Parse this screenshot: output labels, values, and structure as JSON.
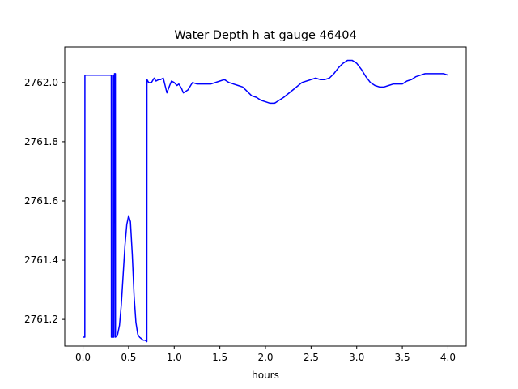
{
  "chart_data": {
    "type": "line",
    "title": "Water Depth h at gauge 46404",
    "xlabel": "hours",
    "ylabel": "",
    "xlim": [
      -0.2,
      4.2
    ],
    "ylim": [
      2761.11,
      2762.12
    ],
    "xticks": [
      {
        "value": 0.0,
        "label": "0.0"
      },
      {
        "value": 0.5,
        "label": "0.5"
      },
      {
        "value": 1.0,
        "label": "1.0"
      },
      {
        "value": 1.5,
        "label": "1.5"
      },
      {
        "value": 2.0,
        "label": "2.0"
      },
      {
        "value": 2.5,
        "label": "2.5"
      },
      {
        "value": 3.0,
        "label": "3.0"
      },
      {
        "value": 3.5,
        "label": "3.5"
      },
      {
        "value": 4.0,
        "label": "4.0"
      }
    ],
    "yticks": [
      {
        "value": 2761.2,
        "label": "2761.2"
      },
      {
        "value": 2761.4,
        "label": "2761.4"
      },
      {
        "value": 2761.6,
        "label": "2761.6"
      },
      {
        "value": 2761.8,
        "label": "2761.8"
      },
      {
        "value": 2762.0,
        "label": "2762.0"
      }
    ],
    "grid": false,
    "series": [
      {
        "color": "#0000ff",
        "x": [
          0.0,
          0.02,
          0.021,
          0.1,
          0.2,
          0.31,
          0.311,
          0.325,
          0.326,
          0.335,
          0.336,
          0.34,
          0.345,
          0.35,
          0.355,
          0.356,
          0.37,
          0.38,
          0.4,
          0.42,
          0.44,
          0.46,
          0.48,
          0.5,
          0.52,
          0.54,
          0.56,
          0.58,
          0.6,
          0.62,
          0.64,
          0.66,
          0.68,
          0.7,
          0.701,
          0.72,
          0.75,
          0.78,
          0.8,
          0.83,
          0.85,
          0.88,
          0.9,
          0.92,
          0.95,
          0.97,
          1.0,
          1.03,
          1.05,
          1.08,
          1.1,
          1.15,
          1.18,
          1.2,
          1.25,
          1.3,
          1.4,
          1.5,
          1.55,
          1.6,
          1.65,
          1.7,
          1.75,
          1.8,
          1.85,
          1.9,
          1.95,
          2.0,
          2.05,
          2.1,
          2.15,
          2.2,
          2.3,
          2.4,
          2.5,
          2.55,
          2.6,
          2.65,
          2.7,
          2.75,
          2.8,
          2.85,
          2.9,
          2.95,
          3.0,
          3.05,
          3.1,
          3.15,
          3.2,
          3.25,
          3.3,
          3.35,
          3.4,
          3.45,
          3.5,
          3.55,
          3.6,
          3.65,
          3.7,
          3.75,
          3.8,
          3.85,
          3.9,
          3.95,
          4.0
        ],
        "y": [
          2761.14,
          2761.14,
          2762.025,
          2762.025,
          2762.025,
          2762.025,
          2761.14,
          2761.14,
          2762.025,
          2762.025,
          2761.14,
          2761.14,
          2762.03,
          2762.03,
          2762.03,
          2761.14,
          2761.145,
          2761.15,
          2761.18,
          2761.25,
          2761.35,
          2761.45,
          2761.52,
          2761.55,
          2761.53,
          2761.42,
          2761.28,
          2761.19,
          2761.15,
          2761.14,
          2761.135,
          2761.13,
          2761.13,
          2761.125,
          2762.01,
          2762.0,
          2762.0,
          2762.015,
          2762.005,
          2762.01,
          2762.01,
          2762.015,
          2761.99,
          2761.965,
          2761.99,
          2762.005,
          2762.0,
          2761.99,
          2761.995,
          2761.98,
          2761.965,
          2761.975,
          2761.99,
          2762.0,
          2761.995,
          2761.995,
          2761.995,
          2762.005,
          2762.01,
          2762.0,
          2761.995,
          2761.99,
          2761.985,
          2761.97,
          2761.955,
          2761.95,
          2761.94,
          2761.935,
          2761.93,
          2761.93,
          2761.94,
          2761.95,
          2761.975,
          2762.0,
          2762.01,
          2762.015,
          2762.01,
          2762.01,
          2762.015,
          2762.03,
          2762.05,
          2762.065,
          2762.075,
          2762.075,
          2762.065,
          2762.045,
          2762.02,
          2762.0,
          2761.99,
          2761.985,
          2761.985,
          2761.99,
          2761.995,
          2761.995,
          2761.995,
          2762.005,
          2762.01,
          2762.02,
          2762.025,
          2762.03,
          2762.03,
          2762.03,
          2762.03,
          2762.03,
          2762.025
        ]
      }
    ]
  }
}
